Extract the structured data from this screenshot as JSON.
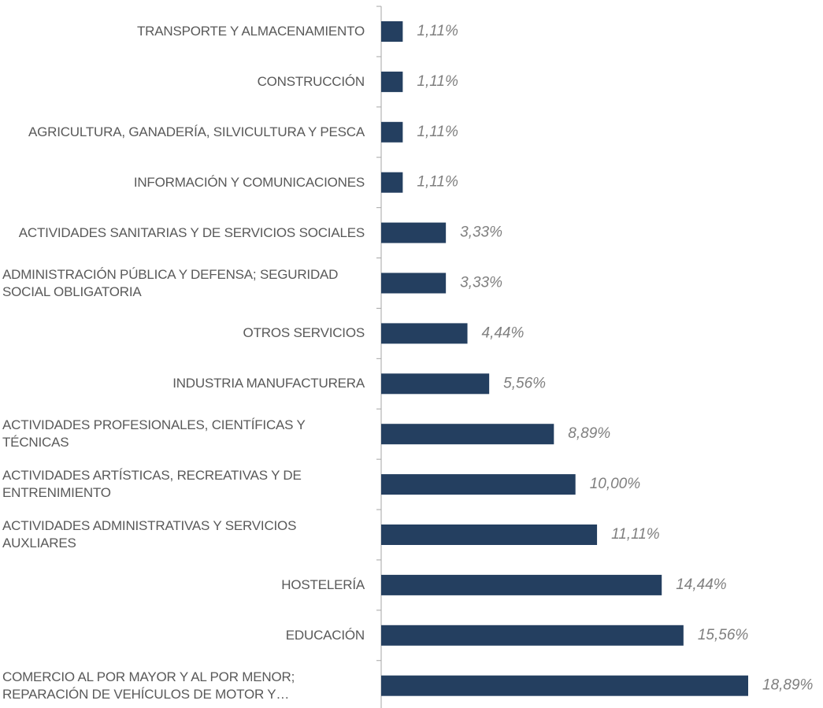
{
  "chart_data": {
    "type": "bar",
    "orientation": "horizontal",
    "color": "#243f60",
    "categories": [
      "TRANSPORTE Y ALMACENAMIENTO",
      "CONSTRUCCIÓN",
      "AGRICULTURA, GANADERÍA, SILVICULTURA Y PESCA",
      "INFORMACIÓN Y COMUNICACIONES",
      "ACTIVIDADES SANITARIAS Y DE SERVICIOS SOCIALES",
      "ADMINISTRACIÓN PÚBLICA Y DEFENSA; SEGURIDAD SOCIAL OBLIGATORIA",
      "OTROS SERVICIOS",
      "INDUSTRIA MANUFACTURERA",
      "ACTIVIDADES PROFESIONALES, CIENTÍFICAS Y TÉCNICAS",
      "ACTIVIDADES ARTÍSTICAS, RECREATIVAS Y DE ENTRENIMIENTO",
      "ACTIVIDADES ADMINISTRATIVAS Y SERVICIOS AUXLIARES",
      "HOSTELERÍA",
      "EDUCACIÓN",
      "COMERCIO AL POR MAYOR Y AL POR MENOR; REPARACIÓN DE VEHÍCULOS DE MOTOR Y…"
    ],
    "values": [
      1.11,
      1.11,
      1.11,
      1.11,
      3.33,
      3.33,
      4.44,
      5.56,
      8.89,
      10.0,
      11.11,
      14.44,
      15.56,
      18.89
    ],
    "value_labels": [
      "1,11%",
      "1,11%",
      "1,11%",
      "1,11%",
      "3,33%",
      "3,33%",
      "4,44%",
      "5,56%",
      "8,89%",
      "10,00%",
      "11,11%",
      "14,44%",
      "15,56%",
      "18,89%"
    ]
  }
}
